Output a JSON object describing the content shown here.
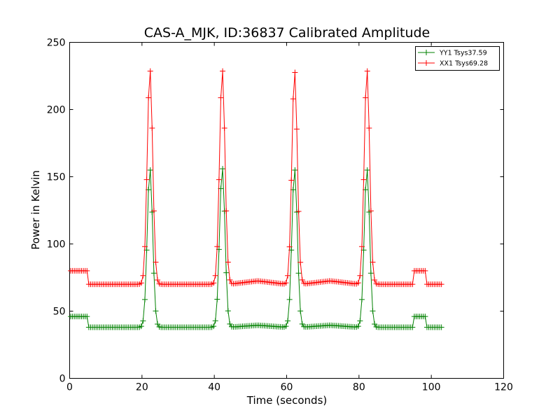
{
  "chart_data": {
    "type": "line",
    "title": "CAS-A_MJK, ID:36837 Calibrated Amplitude",
    "xlabel": "Time (seconds)",
    "ylabel": "Power in Kelvin",
    "xlim": [
      0,
      120
    ],
    "ylim": [
      0,
      250
    ],
    "xticks": [
      0,
      20,
      40,
      60,
      80,
      100,
      120
    ],
    "yticks": [
      0,
      50,
      100,
      150,
      200,
      250
    ],
    "grid": false,
    "legend_position": "top-right",
    "marker": "+",
    "series": [
      {
        "name": "YY1 Tsys37.59",
        "color": "#008000",
        "baseline": 38,
        "pre_level": 46,
        "post_level": 46,
        "peaks": [
          {
            "center": 22.2,
            "height": 156
          },
          {
            "center": 42.2,
            "height": 157
          },
          {
            "center": 62.2,
            "height": 156
          },
          {
            "center": 82.2,
            "height": 156
          }
        ],
        "humps": [
          {
            "from": 44.0,
            "to": 60.0,
            "amp": 1.5
          },
          {
            "from": 64.0,
            "to": 80.0,
            "amp": 1.5
          }
        ]
      },
      {
        "name": "XX1 Tsys69.28",
        "color": "#ff0000",
        "baseline": 70,
        "pre_level": 80,
        "post_level": 80,
        "peaks": [
          {
            "center": 22.2,
            "height": 230
          },
          {
            "center": 42.2,
            "height": 230
          },
          {
            "center": 62.2,
            "height": 229
          },
          {
            "center": 82.2,
            "height": 230
          }
        ],
        "humps": [
          {
            "from": 44.0,
            "to": 60.0,
            "amp": 2.5
          },
          {
            "from": 64.0,
            "to": 80.0,
            "amp": 2.5
          }
        ]
      }
    ],
    "sampling": {
      "start": 0.3,
      "end": 103.0,
      "step": 0.5
    },
    "pre_segment": [
      0.3,
      5.0
    ],
    "post_segment": [
      95.0,
      98.5
    ],
    "peak_width": 0.75
  }
}
